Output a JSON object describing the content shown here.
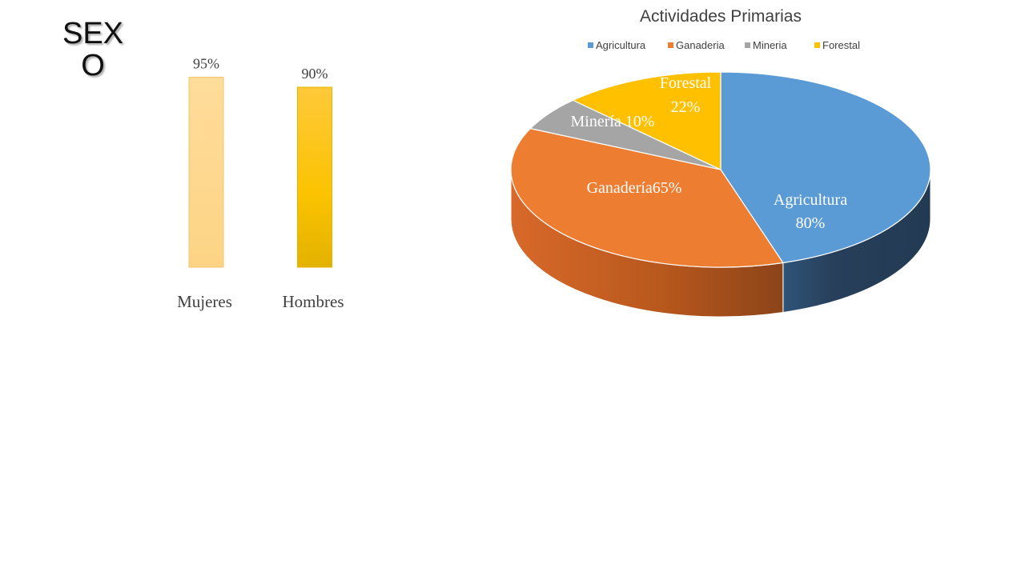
{
  "slide": {
    "title": "SEXO"
  },
  "chart_data": [
    {
      "type": "bar",
      "categories": [
        "Mujeres",
        "Hombres"
      ],
      "values": [
        95,
        90
      ],
      "value_labels": [
        "95%",
        "90%"
      ],
      "ylim": [
        0,
        100
      ],
      "grid": false,
      "colors": [
        "#fdd890",
        "#fcc520"
      ]
    },
    {
      "type": "pie",
      "title": "Actividades Primarias",
      "legend": {
        "position": "top",
        "entries": [
          "Agricultura",
          "Ganaderia",
          "Mineria",
          "Forestal"
        ]
      },
      "series": [
        {
          "values": [
            80,
            65,
            10,
            22
          ],
          "labels": [
            "Agricultura 80%",
            "Ganadería65%",
            "Minería 10%",
            "Forestal 22%"
          ],
          "colors": [
            "#5b9bd5",
            "#ed7d31",
            "#a5a5a5",
            "#ffc000"
          ]
        }
      ]
    }
  ]
}
